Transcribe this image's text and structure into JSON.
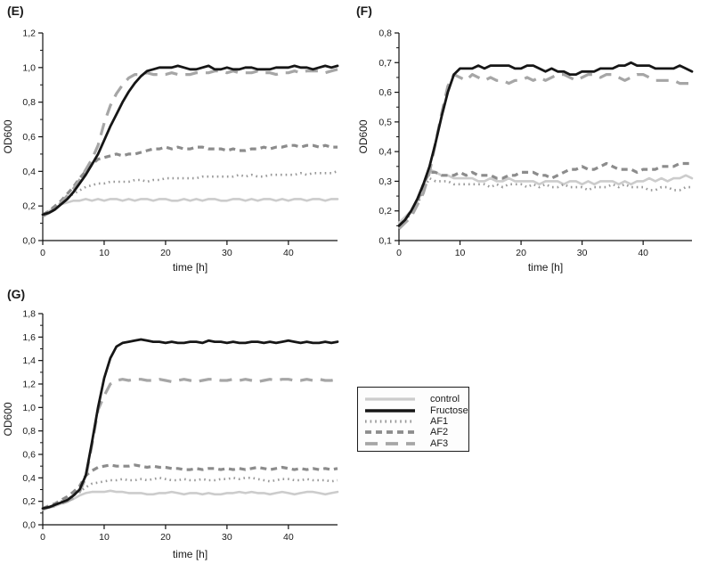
{
  "figure": {
    "background": "#ffffff",
    "text_color": "#1a1a1a"
  },
  "legend": {
    "border_color": "#1c1c1c",
    "items": [
      {
        "label": "control",
        "series": "control"
      },
      {
        "label": "Fructose",
        "series": "Fructose"
      },
      {
        "label": "AF1",
        "series": "AF1"
      },
      {
        "label": "AF2",
        "series": "AF2"
      },
      {
        "label": "AF3",
        "series": "AF3"
      }
    ]
  },
  "chart_data": [
    {
      "id": "E",
      "type": "line",
      "panel_label": "(E)",
      "xlabel": "time [h]",
      "ylabel": "OD600",
      "xlim": [
        0,
        48
      ],
      "ylim": [
        0,
        1.2
      ],
      "grid": false,
      "xticks": [
        {
          "v": 0,
          "t": "0"
        },
        {
          "v": 10,
          "t": "10"
        },
        {
          "v": 20,
          "t": "20"
        },
        {
          "v": 30,
          "t": "30"
        },
        {
          "v": 40,
          "t": "40"
        }
      ],
      "yticks": [
        {
          "v": 0,
          "t": "0,0"
        },
        {
          "v": 0.2,
          "t": "0,2"
        },
        {
          "v": 0.4,
          "t": "0,4"
        },
        {
          "v": 0.6,
          "t": "0,6"
        },
        {
          "v": 0.8,
          "t": "0,8"
        },
        {
          "v": 1.0,
          "t": "1,0"
        },
        {
          "v": 1.2,
          "t": "1,2"
        }
      ],
      "series": [
        {
          "name": "control",
          "color": "#cccccc",
          "style": "solid-light",
          "values": [
            0.15,
            0.17,
            0.19,
            0.21,
            0.22,
            0.23,
            0.23,
            0.24,
            0.23,
            0.24,
            0.23,
            0.24,
            0.24,
            0.23,
            0.24,
            0.23,
            0.24,
            0.24,
            0.23,
            0.24,
            0.24,
            0.23,
            0.23,
            0.24,
            0.23,
            0.24,
            0.23,
            0.24,
            0.24,
            0.23,
            0.23,
            0.24,
            0.24,
            0.23,
            0.24,
            0.23,
            0.24,
            0.24,
            0.23,
            0.24,
            0.23,
            0.24,
            0.24,
            0.23,
            0.24,
            0.24,
            0.23,
            0.24,
            0.24
          ]
        },
        {
          "name": "AF1",
          "color": "#999999",
          "style": "dotted",
          "values": [
            0.15,
            0.17,
            0.19,
            0.22,
            0.25,
            0.27,
            0.29,
            0.31,
            0.32,
            0.33,
            0.33,
            0.34,
            0.34,
            0.34,
            0.34,
            0.35,
            0.35,
            0.34,
            0.35,
            0.35,
            0.36,
            0.36,
            0.36,
            0.36,
            0.36,
            0.36,
            0.37,
            0.37,
            0.37,
            0.37,
            0.37,
            0.37,
            0.38,
            0.37,
            0.38,
            0.37,
            0.37,
            0.38,
            0.38,
            0.38,
            0.38,
            0.38,
            0.39,
            0.38,
            0.39,
            0.39,
            0.39,
            0.39,
            0.4
          ]
        },
        {
          "name": "AF2",
          "color": "#8c8c8c",
          "style": "dashed",
          "values": [
            0.15,
            0.17,
            0.2,
            0.23,
            0.27,
            0.31,
            0.36,
            0.4,
            0.44,
            0.47,
            0.48,
            0.49,
            0.5,
            0.49,
            0.5,
            0.5,
            0.51,
            0.52,
            0.53,
            0.53,
            0.54,
            0.53,
            0.54,
            0.53,
            0.53,
            0.54,
            0.54,
            0.53,
            0.53,
            0.53,
            0.52,
            0.53,
            0.52,
            0.52,
            0.53,
            0.53,
            0.54,
            0.53,
            0.54,
            0.54,
            0.55,
            0.55,
            0.54,
            0.55,
            0.55,
            0.54,
            0.55,
            0.54,
            0.54
          ]
        },
        {
          "name": "AF3",
          "color": "#a6a6a6",
          "style": "longdash",
          "values": [
            0.14,
            0.16,
            0.18,
            0.22,
            0.26,
            0.3,
            0.35,
            0.41,
            0.47,
            0.55,
            0.68,
            0.78,
            0.85,
            0.9,
            0.94,
            0.96,
            0.96,
            0.97,
            0.96,
            0.96,
            0.96,
            0.97,
            0.96,
            0.96,
            0.96,
            0.97,
            0.97,
            0.97,
            0.98,
            0.98,
            0.97,
            0.98,
            0.97,
            0.97,
            0.97,
            0.98,
            0.97,
            0.97,
            0.96,
            0.97,
            0.97,
            0.98,
            0.97,
            0.98,
            0.98,
            0.98,
            0.97,
            0.98,
            0.99
          ]
        },
        {
          "name": "Fructose",
          "color": "#161616",
          "style": "solid-dark",
          "values": [
            0.15,
            0.16,
            0.18,
            0.21,
            0.24,
            0.28,
            0.33,
            0.38,
            0.44,
            0.5,
            0.58,
            0.66,
            0.73,
            0.8,
            0.86,
            0.91,
            0.95,
            0.98,
            0.99,
            1.0,
            1.0,
            1.0,
            1.01,
            1.0,
            0.99,
            0.99,
            1.0,
            1.01,
            0.99,
            0.99,
            1.0,
            0.99,
            0.99,
            1.0,
            1.0,
            0.99,
            0.99,
            0.99,
            1.0,
            1.0,
            1.0,
            1.01,
            1.0,
            1.0,
            0.99,
            1.0,
            1.01,
            1.0,
            1.01
          ]
        }
      ]
    },
    {
      "id": "F",
      "type": "line",
      "panel_label": "(F)",
      "xlabel": "time [h]",
      "ylabel": "OD600",
      "xlim": [
        0,
        48
      ],
      "ylim": [
        0.1,
        0.8
      ],
      "grid": false,
      "xticks": [
        {
          "v": 0,
          "t": "0"
        },
        {
          "v": 10,
          "t": "10"
        },
        {
          "v": 20,
          "t": "20"
        },
        {
          "v": 30,
          "t": "30"
        },
        {
          "v": 40,
          "t": "40"
        }
      ],
      "yticks": [
        {
          "v": 0.1,
          "t": "0,1"
        },
        {
          "v": 0.2,
          "t": "0,2"
        },
        {
          "v": 0.3,
          "t": "0,3"
        },
        {
          "v": 0.4,
          "t": "0,4"
        },
        {
          "v": 0.5,
          "t": "0,5"
        },
        {
          "v": 0.6,
          "t": "0,6"
        },
        {
          "v": 0.7,
          "t": "0,7"
        },
        {
          "v": 0.8,
          "t": "0,8"
        }
      ],
      "series": [
        {
          "name": "control",
          "color": "#cccccc",
          "style": "solid-light",
          "values": [
            0.16,
            0.18,
            0.2,
            0.23,
            0.28,
            0.34,
            0.33,
            0.32,
            0.32,
            0.31,
            0.31,
            0.31,
            0.31,
            0.3,
            0.3,
            0.31,
            0.3,
            0.3,
            0.31,
            0.3,
            0.3,
            0.3,
            0.3,
            0.29,
            0.3,
            0.3,
            0.3,
            0.29,
            0.3,
            0.3,
            0.29,
            0.3,
            0.29,
            0.3,
            0.3,
            0.3,
            0.29,
            0.3,
            0.29,
            0.3,
            0.3,
            0.31,
            0.3,
            0.31,
            0.3,
            0.31,
            0.31,
            0.32,
            0.31
          ]
        },
        {
          "name": "AF1",
          "color": "#999999",
          "style": "dotted",
          "values": [
            0.14,
            0.17,
            0.19,
            0.22,
            0.27,
            0.31,
            0.3,
            0.3,
            0.3,
            0.29,
            0.29,
            0.29,
            0.29,
            0.29,
            0.29,
            0.28,
            0.29,
            0.28,
            0.29,
            0.29,
            0.29,
            0.28,
            0.29,
            0.28,
            0.29,
            0.28,
            0.28,
            0.29,
            0.28,
            0.28,
            0.28,
            0.27,
            0.28,
            0.28,
            0.28,
            0.29,
            0.28,
            0.29,
            0.28,
            0.28,
            0.28,
            0.27,
            0.27,
            0.28,
            0.28,
            0.27,
            0.27,
            0.28,
            0.28
          ]
        },
        {
          "name": "AF2",
          "color": "#8c8c8c",
          "style": "dashed",
          "values": [
            0.15,
            0.17,
            0.2,
            0.23,
            0.29,
            0.33,
            0.33,
            0.32,
            0.32,
            0.32,
            0.33,
            0.32,
            0.33,
            0.32,
            0.32,
            0.32,
            0.31,
            0.31,
            0.32,
            0.32,
            0.33,
            0.33,
            0.33,
            0.32,
            0.32,
            0.31,
            0.32,
            0.33,
            0.34,
            0.34,
            0.35,
            0.34,
            0.34,
            0.35,
            0.36,
            0.35,
            0.34,
            0.34,
            0.34,
            0.33,
            0.34,
            0.34,
            0.34,
            0.35,
            0.35,
            0.35,
            0.36,
            0.36,
            0.36
          ]
        },
        {
          "name": "AF3",
          "color": "#a6a6a6",
          "style": "longdash",
          "values": [
            0.14,
            0.16,
            0.18,
            0.22,
            0.26,
            0.33,
            0.43,
            0.53,
            0.62,
            0.66,
            0.65,
            0.64,
            0.66,
            0.65,
            0.64,
            0.65,
            0.64,
            0.64,
            0.63,
            0.64,
            0.64,
            0.65,
            0.64,
            0.65,
            0.64,
            0.65,
            0.66,
            0.66,
            0.65,
            0.64,
            0.65,
            0.66,
            0.66,
            0.65,
            0.66,
            0.66,
            0.65,
            0.64,
            0.65,
            0.66,
            0.66,
            0.65,
            0.64,
            0.64,
            0.64,
            0.64,
            0.63,
            0.63,
            0.63
          ]
        },
        {
          "name": "Fructose",
          "color": "#161616",
          "style": "solid-dark",
          "values": [
            0.15,
            0.17,
            0.2,
            0.24,
            0.29,
            0.35,
            0.43,
            0.52,
            0.6,
            0.66,
            0.68,
            0.68,
            0.68,
            0.69,
            0.68,
            0.69,
            0.69,
            0.69,
            0.69,
            0.68,
            0.68,
            0.69,
            0.69,
            0.68,
            0.67,
            0.68,
            0.67,
            0.67,
            0.66,
            0.66,
            0.67,
            0.67,
            0.67,
            0.68,
            0.68,
            0.68,
            0.69,
            0.69,
            0.7,
            0.69,
            0.69,
            0.69,
            0.68,
            0.68,
            0.68,
            0.68,
            0.69,
            0.68,
            0.67
          ]
        }
      ]
    },
    {
      "id": "G",
      "type": "line",
      "panel_label": "(G)",
      "xlabel": "time [h]",
      "ylabel": "OD600",
      "xlim": [
        0,
        48
      ],
      "ylim": [
        0,
        1.8
      ],
      "grid": false,
      "xticks": [
        {
          "v": 0,
          "t": "0"
        },
        {
          "v": 10,
          "t": "10"
        },
        {
          "v": 20,
          "t": "20"
        },
        {
          "v": 30,
          "t": "30"
        },
        {
          "v": 40,
          "t": "40"
        }
      ],
      "yticks": [
        {
          "v": 0,
          "t": "0,0"
        },
        {
          "v": 0.2,
          "t": "0,2"
        },
        {
          "v": 0.4,
          "t": "0,4"
        },
        {
          "v": 0.6,
          "t": "0,6"
        },
        {
          "v": 0.8,
          "t": "0,8"
        },
        {
          "v": 1.0,
          "t": "1,0"
        },
        {
          "v": 1.2,
          "t": "1,2"
        },
        {
          "v": 1.4,
          "t": "1,4"
        },
        {
          "v": 1.6,
          "t": "1,6"
        },
        {
          "v": 1.8,
          "t": "1,8"
        }
      ],
      "series": [
        {
          "name": "control",
          "color": "#cccccc",
          "style": "solid-light",
          "values": [
            0.13,
            0.15,
            0.16,
            0.18,
            0.2,
            0.22,
            0.25,
            0.27,
            0.28,
            0.28,
            0.28,
            0.29,
            0.28,
            0.28,
            0.27,
            0.27,
            0.27,
            0.26,
            0.26,
            0.27,
            0.27,
            0.28,
            0.27,
            0.26,
            0.27,
            0.27,
            0.26,
            0.27,
            0.26,
            0.26,
            0.27,
            0.27,
            0.28,
            0.27,
            0.28,
            0.27,
            0.27,
            0.26,
            0.27,
            0.28,
            0.27,
            0.26,
            0.27,
            0.28,
            0.28,
            0.27,
            0.26,
            0.27,
            0.28
          ]
        },
        {
          "name": "AF1",
          "color": "#999999",
          "style": "dotted",
          "values": [
            0.13,
            0.15,
            0.17,
            0.2,
            0.22,
            0.25,
            0.28,
            0.32,
            0.35,
            0.36,
            0.37,
            0.38,
            0.38,
            0.39,
            0.38,
            0.38,
            0.39,
            0.38,
            0.39,
            0.4,
            0.39,
            0.38,
            0.38,
            0.39,
            0.38,
            0.38,
            0.39,
            0.38,
            0.38,
            0.39,
            0.39,
            0.4,
            0.39,
            0.4,
            0.4,
            0.39,
            0.38,
            0.37,
            0.38,
            0.39,
            0.39,
            0.38,
            0.38,
            0.39,
            0.38,
            0.38,
            0.38,
            0.37,
            0.38
          ]
        },
        {
          "name": "AF2",
          "color": "#8c8c8c",
          "style": "dashed",
          "values": [
            0.14,
            0.16,
            0.18,
            0.21,
            0.24,
            0.28,
            0.33,
            0.42,
            0.46,
            0.49,
            0.5,
            0.51,
            0.5,
            0.5,
            0.5,
            0.51,
            0.5,
            0.49,
            0.5,
            0.49,
            0.49,
            0.48,
            0.48,
            0.47,
            0.47,
            0.48,
            0.47,
            0.48,
            0.48,
            0.47,
            0.48,
            0.47,
            0.48,
            0.47,
            0.48,
            0.49,
            0.48,
            0.47,
            0.48,
            0.49,
            0.48,
            0.47,
            0.48,
            0.47,
            0.48,
            0.47,
            0.48,
            0.47,
            0.48
          ]
        },
        {
          "name": "AF3",
          "color": "#a6a6a6",
          "style": "longdash",
          "values": [
            0.13,
            0.15,
            0.16,
            0.18,
            0.2,
            0.23,
            0.28,
            0.4,
            0.68,
            0.98,
            1.1,
            1.2,
            1.23,
            1.24,
            1.23,
            1.24,
            1.24,
            1.23,
            1.23,
            1.24,
            1.23,
            1.22,
            1.23,
            1.24,
            1.23,
            1.22,
            1.23,
            1.24,
            1.24,
            1.23,
            1.23,
            1.24,
            1.23,
            1.24,
            1.23,
            1.22,
            1.23,
            1.24,
            1.23,
            1.24,
            1.24,
            1.23,
            1.23,
            1.24,
            1.23,
            1.24,
            1.23,
            1.23,
            1.24
          ]
        },
        {
          "name": "Fructose",
          "color": "#161616",
          "style": "solid-dark",
          "values": [
            0.14,
            0.15,
            0.17,
            0.19,
            0.21,
            0.25,
            0.3,
            0.42,
            0.7,
            1.0,
            1.25,
            1.42,
            1.52,
            1.55,
            1.56,
            1.57,
            1.58,
            1.57,
            1.56,
            1.56,
            1.55,
            1.56,
            1.55,
            1.55,
            1.56,
            1.56,
            1.55,
            1.57,
            1.56,
            1.56,
            1.55,
            1.56,
            1.55,
            1.55,
            1.56,
            1.56,
            1.55,
            1.56,
            1.55,
            1.56,
            1.57,
            1.56,
            1.55,
            1.56,
            1.55,
            1.55,
            1.56,
            1.55,
            1.56
          ]
        }
      ]
    }
  ]
}
